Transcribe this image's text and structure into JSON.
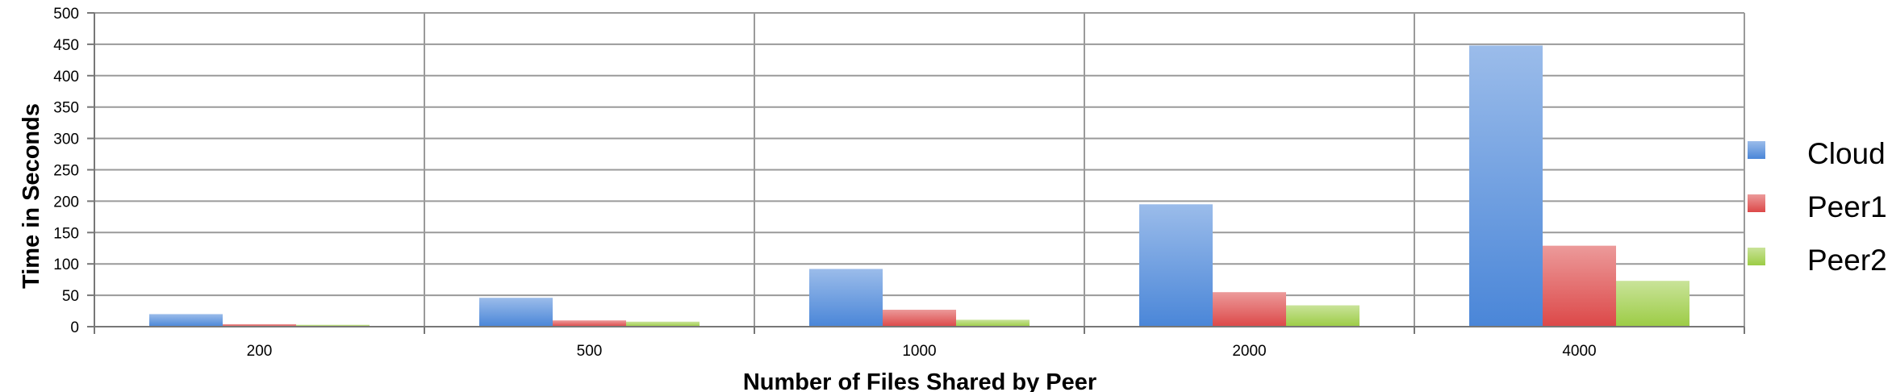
{
  "chart_data": {
    "type": "bar",
    "title": "",
    "xlabel": "Number of Files Shared by Peer",
    "ylabel": "Time in Seconds",
    "categories": [
      "200",
      "500",
      "1000",
      "2000",
      "4000"
    ],
    "ylim": [
      0,
      500
    ],
    "yticks": [
      "0",
      "50",
      "100",
      "150",
      "200",
      "250",
      "300",
      "350",
      "400",
      "450",
      "500"
    ],
    "grid": true,
    "legend_position": "right",
    "series": [
      {
        "name": "Cloud",
        "values": [
          20,
          46,
          92,
          195,
          448
        ],
        "color": "#4a86d8"
      },
      {
        "name": "Peer1",
        "values": [
          4,
          10,
          27,
          55,
          129
        ],
        "color": "#dc4848"
      },
      {
        "name": "Peer2",
        "values": [
          3,
          8,
          11,
          34,
          73
        ],
        "color": "#9ccc45"
      }
    ]
  }
}
